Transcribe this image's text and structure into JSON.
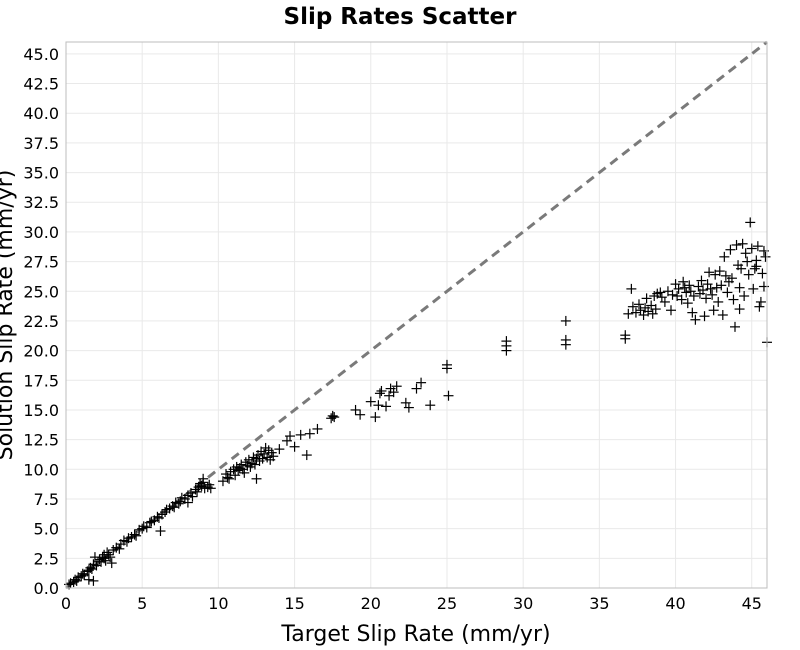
{
  "chart_data": {
    "type": "scatter",
    "title": "Slip Rates Scatter",
    "xlabel": "Target Slip Rate (mm/yr)",
    "ylabel": "Solution Slip Rate (mm/yr)",
    "xlim": [
      0,
      46
    ],
    "ylim": [
      0,
      46
    ],
    "x_ticks": [
      0,
      5,
      10,
      15,
      20,
      25,
      30,
      35,
      40,
      45
    ],
    "y_ticks": [
      0.0,
      2.5,
      5.0,
      7.5,
      10.0,
      12.5,
      15.0,
      17.5,
      20.0,
      22.5,
      25.0,
      27.5,
      30.0,
      32.5,
      35.0,
      37.5,
      40.0,
      42.5,
      45.0
    ],
    "grid": true,
    "marker": "+",
    "marker_color": "#000000",
    "reference_line": {
      "style": "dashed",
      "color": "#7a7a7a",
      "from": [
        0,
        0
      ],
      "to": [
        46,
        46
      ]
    },
    "points": [
      [
        0.2,
        0.3
      ],
      [
        0.3,
        0.4
      ],
      [
        0.5,
        0.5
      ],
      [
        0.6,
        0.7
      ],
      [
        0.7,
        0.6
      ],
      [
        0.8,
        0.9
      ],
      [
        1.0,
        1.0
      ],
      [
        1.1,
        1.2
      ],
      [
        1.2,
        1.1
      ],
      [
        1.4,
        1.4
      ],
      [
        1.5,
        1.5
      ],
      [
        1.5,
        0.7
      ],
      [
        1.8,
        0.6
      ],
      [
        1.6,
        1.7
      ],
      [
        1.7,
        1.6
      ],
      [
        1.8,
        2.0
      ],
      [
        1.9,
        2.6
      ],
      [
        2.0,
        1.9
      ],
      [
        2.1,
        2.2
      ],
      [
        2.2,
        2.4
      ],
      [
        2.3,
        2.2
      ],
      [
        2.4,
        2.6
      ],
      [
        2.5,
        2.5
      ],
      [
        2.5,
        2.8
      ],
      [
        2.6,
        2.3
      ],
      [
        2.7,
        3.0
      ],
      [
        2.8,
        2.8
      ],
      [
        2.9,
        2.6
      ],
      [
        3.0,
        2.1
      ],
      [
        3.1,
        3.2
      ],
      [
        3.3,
        3.4
      ],
      [
        3.5,
        3.3
      ],
      [
        3.6,
        3.7
      ],
      [
        3.8,
        4.0
      ],
      [
        4.0,
        3.9
      ],
      [
        4.1,
        4.2
      ],
      [
        4.3,
        4.3
      ],
      [
        4.5,
        4.5
      ],
      [
        4.6,
        4.4
      ],
      [
        4.8,
        4.9
      ],
      [
        5.0,
        5.0
      ],
      [
        5.1,
        5.2
      ],
      [
        5.3,
        5.1
      ],
      [
        5.5,
        5.5
      ],
      [
        5.6,
        5.6
      ],
      [
        5.8,
        5.7
      ],
      [
        6.0,
        6.0
      ],
      [
        6.1,
        5.9
      ],
      [
        6.2,
        4.8
      ],
      [
        6.3,
        6.2
      ],
      [
        6.5,
        6.4
      ],
      [
        6.6,
        6.6
      ],
      [
        6.8,
        6.7
      ],
      [
        7.0,
        6.9
      ],
      [
        7.1,
        6.8
      ],
      [
        7.2,
        7.2
      ],
      [
        7.4,
        7.1
      ],
      [
        7.5,
        7.3
      ],
      [
        7.6,
        7.6
      ],
      [
        7.8,
        7.5
      ],
      [
        8.0,
        7.8
      ],
      [
        8.0,
        7.2
      ],
      [
        8.2,
        8.0
      ],
      [
        8.3,
        7.7
      ],
      [
        8.5,
        8.3
      ],
      [
        8.6,
        8.1
      ],
      [
        8.7,
        8.5
      ],
      [
        8.8,
        8.8
      ],
      [
        8.9,
        8.6
      ],
      [
        9.0,
        8.9
      ],
      [
        9.0,
        9.2
      ],
      [
        9.1,
        8.4
      ],
      [
        9.3,
        8.5
      ],
      [
        9.4,
        8.7
      ],
      [
        9.5,
        8.4
      ],
      [
        10.3,
        9.0
      ],
      [
        10.5,
        9.6
      ],
      [
        10.6,
        9.3
      ],
      [
        10.7,
        9.2
      ],
      [
        10.8,
        9.8
      ],
      [
        11.0,
        10.0
      ],
      [
        11.1,
        9.5
      ],
      [
        11.2,
        10.2
      ],
      [
        11.3,
        9.9
      ],
      [
        11.4,
        10.1
      ],
      [
        11.5,
        10.4
      ],
      [
        11.6,
        10.0
      ],
      [
        11.7,
        9.7
      ],
      [
        11.8,
        10.6
      ],
      [
        11.9,
        10.3
      ],
      [
        12.0,
        10.8
      ],
      [
        12.1,
        10.2
      ],
      [
        12.2,
        10.5
      ],
      [
        12.3,
        11.0
      ],
      [
        12.4,
        10.4
      ],
      [
        12.5,
        10.9
      ],
      [
        12.5,
        9.2
      ],
      [
        12.6,
        11.2
      ],
      [
        12.7,
        10.7
      ],
      [
        12.8,
        11.5
      ],
      [
        12.9,
        10.9
      ],
      [
        13.0,
        11.3
      ],
      [
        13.1,
        11.8
      ],
      [
        13.2,
        11.0
      ],
      [
        13.3,
        11.6
      ],
      [
        13.4,
        10.8
      ],
      [
        13.5,
        11.4
      ],
      [
        13.6,
        11.1
      ],
      [
        14.0,
        11.7
      ],
      [
        14.5,
        12.4
      ],
      [
        14.7,
        12.8
      ],
      [
        15.0,
        11.9
      ],
      [
        15.4,
        12.9
      ],
      [
        15.8,
        11.2
      ],
      [
        16.0,
        13.0
      ],
      [
        16.5,
        13.4
      ],
      [
        17.4,
        14.3
      ],
      [
        17.5,
        14.5
      ],
      [
        17.6,
        14.4
      ],
      [
        19.0,
        15.0
      ],
      [
        19.3,
        14.6
      ],
      [
        20.0,
        15.7
      ],
      [
        20.3,
        14.4
      ],
      [
        20.5,
        15.4
      ],
      [
        20.6,
        16.4
      ],
      [
        20.7,
        16.6
      ],
      [
        21.0,
        15.3
      ],
      [
        21.2,
        16.2
      ],
      [
        21.3,
        16.8
      ],
      [
        21.5,
        16.5
      ],
      [
        21.7,
        17.0
      ],
      [
        22.3,
        15.6
      ],
      [
        22.5,
        15.2
      ],
      [
        23.0,
        16.8
      ],
      [
        23.3,
        17.3
      ],
      [
        23.9,
        15.4
      ],
      [
        25.0,
        18.5
      ],
      [
        25.0,
        18.8
      ],
      [
        25.1,
        16.2
      ],
      [
        28.9,
        20.0
      ],
      [
        28.9,
        20.4
      ],
      [
        28.9,
        20.8
      ],
      [
        32.8,
        20.5
      ],
      [
        32.8,
        20.9
      ],
      [
        32.8,
        22.5
      ],
      [
        36.7,
        21.0
      ],
      [
        36.7,
        21.3
      ],
      [
        36.9,
        23.1
      ],
      [
        37.1,
        25.2
      ],
      [
        37.2,
        23.7
      ],
      [
        37.4,
        23.2
      ],
      [
        37.6,
        23.9
      ],
      [
        37.7,
        23.4
      ],
      [
        37.9,
        23.0
      ],
      [
        38.0,
        23.6
      ],
      [
        38.1,
        24.4
      ],
      [
        38.2,
        23.3
      ],
      [
        38.4,
        23.8
      ],
      [
        38.5,
        23.1
      ],
      [
        38.6,
        24.6
      ],
      [
        38.7,
        23.5
      ],
      [
        38.8,
        24.8
      ],
      [
        39.0,
        24.9
      ],
      [
        39.1,
        24.5
      ],
      [
        39.3,
        24.1
      ],
      [
        39.5,
        25.0
      ],
      [
        39.7,
        23.4
      ],
      [
        39.8,
        24.7
      ],
      [
        40.0,
        25.6
      ],
      [
        40.1,
        24.6
      ],
      [
        40.2,
        25.2
      ],
      [
        40.4,
        24.3
      ],
      [
        40.5,
        25.8
      ],
      [
        40.6,
        25.3
      ],
      [
        40.7,
        24.9
      ],
      [
        40.8,
        24.0
      ],
      [
        40.9,
        25.5
      ],
      [
        41.0,
        25.0
      ],
      [
        41.1,
        23.2
      ],
      [
        41.2,
        24.6
      ],
      [
        41.3,
        22.6
      ],
      [
        41.5,
        25.4
      ],
      [
        41.6,
        24.8
      ],
      [
        41.7,
        25.9
      ],
      [
        41.8,
        25.1
      ],
      [
        41.9,
        22.9
      ],
      [
        42.0,
        24.4
      ],
      [
        42.1,
        25.6
      ],
      [
        42.2,
        26.6
      ],
      [
        42.3,
        25.2
      ],
      [
        42.4,
        24.7
      ],
      [
        42.5,
        23.4
      ],
      [
        42.6,
        26.4
      ],
      [
        42.7,
        25.3
      ],
      [
        42.8,
        24.1
      ],
      [
        42.9,
        26.7
      ],
      [
        43.0,
        25.5
      ],
      [
        43.1,
        23.0
      ],
      [
        43.2,
        27.9
      ],
      [
        43.3,
        26.3
      ],
      [
        43.4,
        24.9
      ],
      [
        43.5,
        25.8
      ],
      [
        43.6,
        28.5
      ],
      [
        43.7,
        26.1
      ],
      [
        43.8,
        24.3
      ],
      [
        43.9,
        22.0
      ],
      [
        44.0,
        28.9
      ],
      [
        44.1,
        27.2
      ],
      [
        44.2,
        25.3
      ],
      [
        44.3,
        26.9
      ],
      [
        44.4,
        29.0
      ],
      [
        44.5,
        24.6
      ],
      [
        44.6,
        28.2
      ],
      [
        44.7,
        27.5
      ],
      [
        44.8,
        26.4
      ],
      [
        44.9,
        30.8
      ],
      [
        45.0,
        28.6
      ],
      [
        45.1,
        25.2
      ],
      [
        45.2,
        26.9
      ],
      [
        45.3,
        27.6
      ],
      [
        45.4,
        28.8
      ],
      [
        45.5,
        23.7
      ],
      [
        45.6,
        24.1
      ],
      [
        45.7,
        26.5
      ],
      [
        45.8,
        25.4
      ],
      [
        45.9,
        27.9
      ],
      [
        46.0,
        20.7
      ],
      [
        45.8,
        28.4
      ],
      [
        45.3,
        27.1
      ],
      [
        44.2,
        23.5
      ]
    ]
  }
}
